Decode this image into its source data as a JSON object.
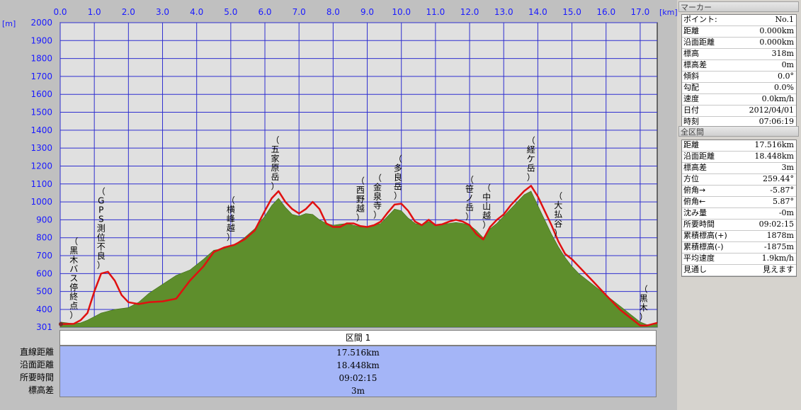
{
  "chart_data": {
    "type": "area",
    "x_unit": "[km]",
    "y_unit": "[m]",
    "xlim": [
      0,
      17.5
    ],
    "ylim": [
      301,
      2000
    ],
    "x_ticks": [
      "0.0",
      "1.0",
      "2.0",
      "3.0",
      "4.0",
      "5.0",
      "6.0",
      "7.0",
      "8.0",
      "9.0",
      "10.0",
      "11.0",
      "12.0",
      "13.0",
      "14.0",
      "15.0",
      "16.0",
      "17.0"
    ],
    "y_ticks": [
      "2000",
      "1900",
      "1800",
      "1700",
      "1600",
      "1500",
      "1400",
      "1300",
      "1200",
      "1100",
      "1000",
      "900",
      "800",
      "700",
      "600",
      "500",
      "400",
      "301"
    ],
    "grid": true,
    "colors": {
      "plot_bg": "#e0e0e0",
      "grid": "#2f2fcf",
      "area": "#5e8e2c",
      "line": "#e01010",
      "axis_text": "#1a1aff"
    },
    "series": [
      {
        "x": [
          0,
          0.4,
          0.6,
          0.8,
          1.0,
          1.2,
          1.4,
          1.6,
          1.8,
          2.0,
          2.3,
          2.6,
          3.0,
          3.4,
          3.8,
          4.2,
          4.5,
          4.8,
          5.1,
          5.4,
          5.7,
          6.0,
          6.2,
          6.4,
          6.6,
          6.8,
          7.0,
          7.2,
          7.4,
          7.6,
          7.8,
          8.0,
          8.2,
          8.4,
          8.6,
          8.8,
          9.0,
          9.2,
          9.4,
          9.6,
          9.8,
          10.0,
          10.2,
          10.4,
          10.6,
          10.8,
          11.0,
          11.2,
          11.4,
          11.6,
          11.8,
          12.0,
          12.2,
          12.4,
          12.6,
          12.8,
          13.0,
          13.2,
          13.4,
          13.6,
          13.8,
          14.0,
          14.2,
          14.4,
          14.6,
          14.8,
          15.0,
          15.2,
          15.4,
          15.6,
          15.8,
          16.0,
          16.2,
          16.4,
          16.6,
          16.8,
          17.0,
          17.2,
          17.5
        ],
        "y": [
          330,
          320,
          325,
          340,
          360,
          380,
          390,
          400,
          405,
          410,
          440,
          490,
          540,
          590,
          620,
          680,
          730,
          740,
          760,
          800,
          850,
          920,
          980,
          1020,
          970,
          930,
          920,
          935,
          930,
          900,
          880,
          870,
          875,
          880,
          870,
          860,
          860,
          870,
          880,
          920,
          960,
          950,
          910,
          880,
          870,
          890,
          870,
          875,
          880,
          885,
          880,
          870,
          840,
          800,
          850,
          880,
          920,
          960,
          1000,
          1040,
          1060,
          980,
          900,
          820,
          750,
          690,
          640,
          600,
          570,
          540,
          510,
          480,
          450,
          420,
          390,
          360,
          330,
          315,
          320
        ]
      },
      {
        "x": [
          0,
          0.4,
          0.6,
          0.8,
          1.0,
          1.2,
          1.4,
          1.6,
          1.8,
          2.0,
          2.3,
          2.6,
          3.0,
          3.4,
          3.8,
          4.2,
          4.5,
          4.8,
          5.1,
          5.4,
          5.7,
          6.0,
          6.2,
          6.4,
          6.6,
          6.8,
          7.0,
          7.2,
          7.4,
          7.6,
          7.8,
          8.0,
          8.2,
          8.4,
          8.6,
          8.8,
          9.0,
          9.2,
          9.4,
          9.6,
          9.8,
          10.0,
          10.2,
          10.4,
          10.6,
          10.8,
          11.0,
          11.2,
          11.4,
          11.6,
          11.8,
          12.0,
          12.2,
          12.4,
          12.6,
          12.8,
          13.0,
          13.2,
          13.4,
          13.6,
          13.8,
          14.0,
          14.2,
          14.4,
          14.6,
          14.8,
          15.0,
          15.2,
          15.4,
          15.6,
          15.8,
          16.0,
          16.2,
          16.4,
          16.6,
          16.8,
          17.0,
          17.2,
          17.5
        ],
        "y": [
          318,
          320,
          340,
          380,
          500,
          600,
          610,
          560,
          480,
          440,
          430,
          440,
          445,
          460,
          560,
          640,
          720,
          745,
          760,
          790,
          840,
          950,
          1020,
          1060,
          1000,
          960,
          935,
          960,
          1000,
          960,
          880,
          860,
          860,
          880,
          880,
          865,
          860,
          870,
          890,
          940,
          985,
          990,
          950,
          890,
          870,
          900,
          870,
          875,
          890,
          900,
          890,
          870,
          820,
          790,
          860,
          900,
          930,
          980,
          1020,
          1060,
          1090,
          1030,
          950,
          870,
          780,
          710,
          680,
          640,
          600,
          560,
          520,
          480,
          440,
          400,
          370,
          340,
          310,
          310,
          325
        ]
      }
    ],
    "annotations": [
      {
        "text": "（黒木バス停終点）",
        "x": 0.4
      },
      {
        "text": "（GPS測位不良）",
        "x": 1.2
      },
      {
        "text": "（横峰越）",
        "x": 5.0
      },
      {
        "text": "（五家原岳）",
        "x": 6.3
      },
      {
        "text": "（西野越）",
        "x": 8.8
      },
      {
        "text": "（金泉寺）",
        "x": 9.3
      },
      {
        "text": "（多良岳）",
        "x": 9.9
      },
      {
        "text": "（笹ノ岳）",
        "x": 12.0
      },
      {
        "text": "（中山越）",
        "x": 12.5
      },
      {
        "text": "（経ケ岳）",
        "x": 13.8
      },
      {
        "text": "（大払谷）",
        "x": 14.6
      },
      {
        "text": "（黒木）",
        "x": 17.1
      }
    ]
  },
  "section": {
    "header": "区間 1",
    "rows": [
      {
        "label": "直線距離",
        "value": "17.516km"
      },
      {
        "label": "沿面距離",
        "value": "18.448km"
      },
      {
        "label": "所要時間",
        "value": "09:02:15"
      },
      {
        "label": "標高差",
        "value": "3m"
      }
    ]
  },
  "marker_panel": {
    "title": "マーカー",
    "rows": [
      {
        "k": "ポイント:",
        "v": "No.1"
      },
      {
        "k": "距離",
        "v": "0.000km"
      },
      {
        "k": "沿面距離",
        "v": "0.000km"
      },
      {
        "k": "標高",
        "v": "318m"
      },
      {
        "k": "標高差",
        "v": "0m"
      },
      {
        "k": "傾斜",
        "v": "0.0°"
      },
      {
        "k": "勾配",
        "v": "0.0%"
      },
      {
        "k": "速度",
        "v": "0.0km/h"
      },
      {
        "k": "日付",
        "v": "2012/04/01"
      },
      {
        "k": "時刻",
        "v": "07:06:19"
      }
    ]
  },
  "total_panel": {
    "title": "全区間",
    "rows": [
      {
        "k": "距離",
        "v": "17.516km"
      },
      {
        "k": "沿面距離",
        "v": "18.448km"
      },
      {
        "k": "標高差",
        "v": "3m"
      },
      {
        "k": "方位",
        "v": "259.44°"
      },
      {
        "k": "俯角→",
        "v": "-5.87°"
      },
      {
        "k": "俯角←",
        "v": "5.87°"
      },
      {
        "k": "沈み量",
        "v": "-0m"
      },
      {
        "k": "所要時間",
        "v": "09:02:15"
      },
      {
        "k": "累積標高(+)",
        "v": "1878m"
      },
      {
        "k": "累積標高(-)",
        "v": "-1875m"
      },
      {
        "k": "平均速度",
        "v": "1.9km/h"
      },
      {
        "k": "見通し",
        "v": "見えます"
      }
    ]
  }
}
